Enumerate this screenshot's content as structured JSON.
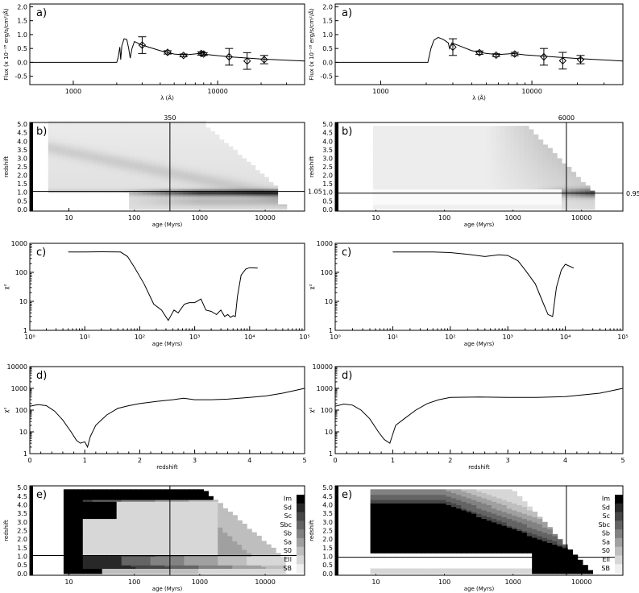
{
  "panels": {
    "a": {
      "label": "a)",
      "ylabel": "Flux (x 10⁻¹⁸ erg/s/cm²/Å)",
      "xlabel": "λ (Å)",
      "yticks": [
        "2.0",
        "1.5",
        "1.0",
        "0.5",
        "0.0",
        "-0.5"
      ],
      "xticks": [
        "1000",
        "10000"
      ]
    },
    "b": {
      "label": "b)",
      "ylabel": "redshift",
      "xlabel": "age (Myrs)",
      "yticks": [
        "5.0",
        "4.5",
        "4.0",
        "3.5",
        "3.0",
        "2.5",
        "2.0",
        "1.5",
        "1.0",
        "0.5",
        "0.0"
      ],
      "xticks": [
        "10",
        "100",
        "1000",
        "10000"
      ]
    },
    "c": {
      "label": "c)",
      "ylabel": "χ²",
      "xlabel": "age (Myrs)",
      "yticks": [
        "1000",
        "100",
        "10",
        "1"
      ],
      "xticks": [
        "10⁰",
        "10¹",
        "10²",
        "10³",
        "10⁴",
        "10⁵"
      ]
    },
    "d": {
      "label": "d)",
      "ylabel": "χ²",
      "xlabel": "redshift",
      "yticks": [
        "10000",
        "1000",
        "100",
        "10",
        "1"
      ],
      "xticks": [
        "0",
        "1",
        "2",
        "3",
        "4",
        "5"
      ]
    },
    "e": {
      "label": "e)",
      "ylabel": "redshift",
      "xlabel": "age (Myrs)",
      "yticks": [
        "5.0",
        "4.5",
        "4.0",
        "3.5",
        "3.0",
        "2.5",
        "2.0",
        "1.5",
        "1.0",
        "0.5",
        "0.0"
      ],
      "xticks": [
        "10",
        "100",
        "1000",
        "10000"
      ],
      "types": [
        "Im",
        "Sd",
        "Sc",
        "Sbc",
        "Sb",
        "Sa",
        "S0",
        "Ell",
        "SB"
      ]
    }
  },
  "columns": [
    {
      "best_age": "350",
      "best_z": "1.05"
    },
    {
      "best_age": "6000",
      "best_z": "0.95"
    }
  ],
  "chart_data": [
    {
      "type": "line",
      "panel": "a",
      "column": 0,
      "xlabel": "λ (Å)",
      "ylabel": "Flux (x 10⁻¹⁸ erg/s/cm²/Å)",
      "xscale": "log",
      "xlim": [
        500,
        40000
      ],
      "ylim": [
        -0.8,
        2.1
      ],
      "points": {
        "x": [
          3000,
          4500,
          5800,
          7700,
          8000,
          12000,
          16000,
          21000
        ],
        "y": [
          0.62,
          0.36,
          0.25,
          0.32,
          0.3,
          0.2,
          0.05,
          0.1
        ],
        "err": [
          0.3,
          0.06,
          0.05,
          0.06,
          0.05,
          0.3,
          0.3,
          0.15
        ]
      }
    },
    {
      "type": "line",
      "panel": "a",
      "column": 1,
      "xlabel": "λ (Å)",
      "ylabel": "Flux (x 10⁻¹⁸ erg/s/cm²/Å)",
      "xscale": "log",
      "xlim": [
        500,
        40000
      ],
      "ylim": [
        -0.8,
        2.1
      ],
      "points": {
        "x": [
          3000,
          4500,
          5800,
          7700,
          12000,
          16000,
          21000
        ],
        "y": [
          0.55,
          0.35,
          0.26,
          0.3,
          0.2,
          0.06,
          0.1
        ],
        "err": [
          0.3,
          0.06,
          0.05,
          0.06,
          0.3,
          0.3,
          0.15
        ]
      }
    },
    {
      "type": "heatmap",
      "panel": "b",
      "column": 0,
      "xlabel": "age (Myrs)",
      "ylabel": "redshift",
      "xscale": "log",
      "xlim": [
        3,
        40000
      ],
      "ylim": [
        -0.1,
        5.1
      ],
      "best_age": 350,
      "best_z": 1.05
    },
    {
      "type": "heatmap",
      "panel": "b",
      "column": 1,
      "xlabel": "age (Myrs)",
      "ylabel": "redshift",
      "xscale": "log",
      "xlim": [
        3,
        40000
      ],
      "ylim": [
        -0.1,
        5.1
      ],
      "best_age": 6000,
      "best_z": 0.95
    },
    {
      "type": "line",
      "panel": "c",
      "column": 0,
      "xlabel": "age (Myrs)",
      "ylabel": "χ²",
      "xscale": "log",
      "yscale": "log",
      "xlim": [
        1,
        100000
      ],
      "ylim": [
        1,
        1000
      ],
      "x": [
        5,
        10,
        20,
        45,
        60,
        80,
        120,
        180,
        250,
        330,
        420,
        500,
        650,
        800,
        1000,
        1300,
        1600,
        2000,
        2500,
        3000,
        3500,
        4000,
        4500,
        5000,
        5500,
        6000,
        7000,
        8500,
        10000,
        14000
      ],
      "y": [
        500,
        500,
        510,
        500,
        350,
        150,
        40,
        8,
        5,
        2.2,
        5,
        4,
        8,
        9,
        9,
        12,
        5,
        4.5,
        3.5,
        5,
        3,
        3.5,
        2.8,
        3.2,
        3,
        15,
        80,
        130,
        145,
        140
      ]
    },
    {
      "type": "line",
      "panel": "c",
      "column": 1,
      "xlabel": "age (Myrs)",
      "ylabel": "χ²",
      "xscale": "log",
      "yscale": "log",
      "xlim": [
        1,
        100000
      ],
      "ylim": [
        1,
        1000
      ],
      "x": [
        10,
        20,
        50,
        100,
        200,
        400,
        700,
        1000,
        1500,
        2000,
        3000,
        4000,
        5000,
        6000,
        7000,
        8500,
        10000,
        14000
      ],
      "y": [
        500,
        500,
        500,
        480,
        420,
        350,
        400,
        380,
        250,
        120,
        40,
        10,
        3.5,
        3,
        30,
        120,
        190,
        140
      ]
    },
    {
      "type": "line",
      "panel": "d",
      "column": 0,
      "xlabel": "redshift",
      "ylabel": "χ²",
      "yscale": "log",
      "xlim": [
        0,
        5
      ],
      "ylim": [
        1,
        10000
      ],
      "x": [
        0,
        0.15,
        0.3,
        0.45,
        0.6,
        0.75,
        0.85,
        0.92,
        1.0,
        1.05,
        1.1,
        1.2,
        1.4,
        1.6,
        1.8,
        2.0,
        2.3,
        2.6,
        2.8,
        3.0,
        3.3,
        3.6,
        4.0,
        4.3,
        4.6,
        5.0
      ],
      "y": [
        150,
        180,
        160,
        90,
        35,
        10,
        4,
        3,
        3.5,
        2,
        6,
        20,
        60,
        120,
        160,
        200,
        250,
        300,
        350,
        300,
        300,
        320,
        380,
        450,
        600,
        1000
      ]
    },
    {
      "type": "line",
      "panel": "d",
      "column": 1,
      "xlabel": "redshift",
      "ylabel": "χ²",
      "yscale": "log",
      "xlim": [
        0,
        5
      ],
      "ylim": [
        1,
        10000
      ],
      "x": [
        0,
        0.15,
        0.3,
        0.45,
        0.6,
        0.75,
        0.85,
        0.95,
        1.05,
        1.2,
        1.4,
        1.6,
        1.8,
        2.0,
        2.5,
        3.0,
        3.5,
        4.0,
        4.3,
        4.6,
        5.0
      ],
      "y": [
        150,
        190,
        170,
        100,
        40,
        10,
        4.5,
        3,
        20,
        40,
        100,
        200,
        300,
        380,
        400,
        380,
        380,
        420,
        500,
        600,
        1000
      ]
    },
    {
      "type": "heatmap",
      "panel": "e",
      "column": 0,
      "xlabel": "age (Myrs)",
      "ylabel": "redshift",
      "xscale": "log",
      "xlim": [
        3,
        40000
      ],
      "ylim": [
        -0.1,
        5.1
      ],
      "legend": [
        "Im",
        "Sd",
        "Sc",
        "Sbc",
        "Sb",
        "Sa",
        "S0",
        "Ell",
        "SB"
      ]
    },
    {
      "type": "heatmap",
      "panel": "e",
      "column": 1,
      "xlabel": "age (Myrs)",
      "ylabel": "redshift",
      "xscale": "log",
      "xlim": [
        3,
        40000
      ],
      "ylim": [
        -0.1,
        5.1
      ],
      "legend": [
        "Im",
        "Sd",
        "Sc",
        "Sbc",
        "Sb",
        "Sa",
        "S0",
        "Ell",
        "SB"
      ]
    }
  ]
}
